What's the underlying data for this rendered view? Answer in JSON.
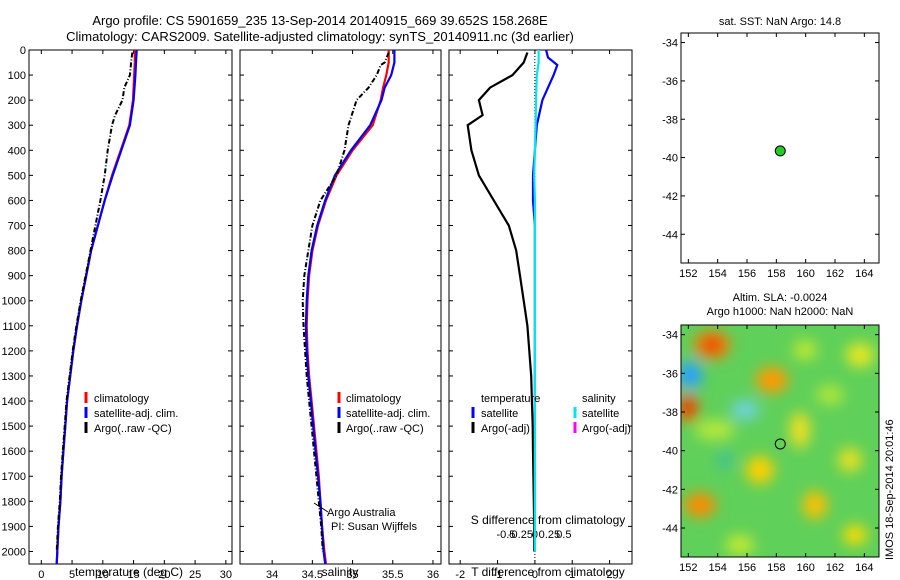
{
  "header": {
    "line1": "Argo profile: CS 5901659_235 13-Sep-2014 20140915_669 39.652S 158.268E",
    "line2": "Climatology: CARS2009. Satellite-adjusted climatology: synTS_20140911.nc (3d earlier)"
  },
  "right_top": {
    "title": "sat. SST: NaN Argo: 14.8"
  },
  "right_bottom": {
    "title1": "Altim. SLA: -0.0024",
    "title2": "Argo h1000: NaN h2000: NaN",
    "side_text": "IMOS 18-Sep-2014 20:01:46"
  },
  "annotation": {
    "line1": "Argo Australia",
    "line2": "PI: Susan Wijffels"
  },
  "legend_profiles": [
    "climatology",
    "satellite-adj. clim.",
    "Argo(..raw -QC)"
  ],
  "legend_diff": {
    "temperature_header": "temperature",
    "salinity_header": "salinity",
    "items": [
      "satellite",
      "Argo(-adj)"
    ]
  },
  "colors": {
    "climatology": "#ff0000",
    "satellite": "#0000ff",
    "argo": "#000000",
    "sal_satellite": "#00e5ee",
    "sal_argo": "#ff00ff",
    "marker": "#22cc22"
  },
  "chart_data": [
    {
      "type": "line",
      "xlabel": "temperature (deg C)",
      "ylabel": "",
      "xlim": [
        -2,
        31
      ],
      "ylim": [
        2050,
        0
      ],
      "xticks": [
        0,
        5,
        10,
        15,
        20,
        25,
        30
      ],
      "yticks": [
        0,
        100,
        200,
        300,
        400,
        500,
        600,
        700,
        800,
        900,
        1000,
        1100,
        1200,
        1300,
        1400,
        1500,
        1600,
        1700,
        1800,
        1900,
        2000
      ],
      "series": [
        {
          "name": "climatology",
          "color": "#ff0000",
          "points": [
            [
              15.2,
              0
            ],
            [
              15.2,
              50
            ],
            [
              15.1,
              100
            ],
            [
              14.9,
              200
            ],
            [
              14.3,
              300
            ],
            [
              12.9,
              400
            ],
            [
              11.5,
              500
            ],
            [
              10.3,
              600
            ],
            [
              9.2,
              700
            ],
            [
              8.1,
              800
            ],
            [
              7.3,
              900
            ],
            [
              6.5,
              1000
            ],
            [
              5.8,
              1100
            ],
            [
              5.2,
              1200
            ],
            [
              4.7,
              1300
            ],
            [
              4.2,
              1400
            ],
            [
              3.9,
              1500
            ],
            [
              3.6,
              1600
            ],
            [
              3.3,
              1700
            ],
            [
              3.1,
              1800
            ],
            [
              2.8,
              1900
            ],
            [
              2.6,
              2000
            ],
            [
              2.5,
              2050
            ]
          ]
        },
        {
          "name": "satellite-adj. clim.",
          "color": "#0000ff",
          "points": [
            [
              15.5,
              0
            ],
            [
              15.4,
              50
            ],
            [
              15.3,
              100
            ],
            [
              15.0,
              200
            ],
            [
              14.4,
              300
            ],
            [
              13.0,
              400
            ],
            [
              11.6,
              500
            ],
            [
              10.3,
              600
            ],
            [
              9.2,
              700
            ],
            [
              8.1,
              800
            ],
            [
              7.3,
              900
            ],
            [
              6.5,
              1000
            ],
            [
              5.8,
              1100
            ],
            [
              5.2,
              1200
            ],
            [
              4.7,
              1300
            ],
            [
              4.2,
              1400
            ],
            [
              3.9,
              1500
            ],
            [
              3.6,
              1600
            ],
            [
              3.3,
              1700
            ],
            [
              3.1,
              1800
            ],
            [
              2.8,
              1900
            ],
            [
              2.6,
              2000
            ],
            [
              2.5,
              2050
            ]
          ]
        },
        {
          "name": "Argo(..raw -QC)",
          "color": "#000000",
          "dashed": true,
          "points": [
            [
              14.8,
              10
            ],
            [
              14.6,
              50
            ],
            [
              14.4,
              100
            ],
            [
              13.5,
              150
            ],
            [
              13.2,
              200
            ],
            [
              12.0,
              260
            ],
            [
              11.5,
              300
            ],
            [
              10.8,
              400
            ],
            [
              10.3,
              500
            ],
            [
              9.6,
              600
            ],
            [
              8.8,
              700
            ],
            [
              8.0,
              800
            ],
            [
              7.2,
              900
            ],
            [
              6.4,
              1000
            ],
            [
              5.7,
              1100
            ],
            [
              5.1,
              1200
            ],
            [
              4.6,
              1300
            ],
            [
              4.1,
              1400
            ],
            [
              3.8,
              1500
            ],
            [
              3.5,
              1600
            ],
            [
              3.2,
              1700
            ],
            [
              3.0,
              1800
            ],
            [
              2.7,
              1900
            ],
            [
              2.5,
              2000
            ]
          ]
        }
      ]
    },
    {
      "type": "line",
      "xlabel": "salinity",
      "ylabel": "",
      "xlim": [
        33.6,
        36.1
      ],
      "ylim": [
        2050,
        0
      ],
      "xticks": [
        34,
        34.5,
        35,
        35.5,
        36
      ],
      "series": [
        {
          "name": "climatology",
          "color": "#ff0000",
          "points": [
            [
              35.45,
              0
            ],
            [
              35.45,
              50
            ],
            [
              35.42,
              100
            ],
            [
              35.38,
              150
            ],
            [
              35.35,
              200
            ],
            [
              35.25,
              300
            ],
            [
              35.0,
              400
            ],
            [
              34.8,
              500
            ],
            [
              34.67,
              600
            ],
            [
              34.57,
              700
            ],
            [
              34.5,
              800
            ],
            [
              34.46,
              900
            ],
            [
              34.44,
              1000
            ],
            [
              34.43,
              1100
            ],
            [
              34.44,
              1200
            ],
            [
              34.46,
              1300
            ],
            [
              34.49,
              1400
            ],
            [
              34.52,
              1500
            ],
            [
              34.55,
              1600
            ],
            [
              34.58,
              1700
            ],
            [
              34.6,
              1800
            ],
            [
              34.62,
              1900
            ],
            [
              34.65,
              2000
            ],
            [
              34.67,
              2050
            ]
          ]
        },
        {
          "name": "satellite-adj. clim.",
          "color": "#0000ff",
          "points": [
            [
              35.52,
              0
            ],
            [
              35.52,
              50
            ],
            [
              35.48,
              100
            ],
            [
              35.4,
              150
            ],
            [
              35.36,
              200
            ],
            [
              35.22,
              300
            ],
            [
              34.98,
              400
            ],
            [
              34.78,
              500
            ],
            [
              34.66,
              600
            ],
            [
              34.56,
              700
            ],
            [
              34.49,
              800
            ],
            [
              34.45,
              900
            ],
            [
              34.43,
              1000
            ],
            [
              34.42,
              1100
            ],
            [
              34.43,
              1200
            ],
            [
              34.45,
              1300
            ],
            [
              34.48,
              1400
            ],
            [
              34.51,
              1500
            ],
            [
              34.54,
              1600
            ],
            [
              34.57,
              1700
            ],
            [
              34.6,
              1800
            ],
            [
              34.62,
              1900
            ],
            [
              34.64,
              2000
            ],
            [
              34.66,
              2050
            ]
          ]
        },
        {
          "name": "Argo(..raw -QC)",
          "color": "#000000",
          "dashed": true,
          "points": [
            [
              35.45,
              10
            ],
            [
              35.4,
              50
            ],
            [
              35.35,
              60
            ],
            [
              35.3,
              100
            ],
            [
              35.2,
              150
            ],
            [
              35.05,
              200
            ],
            [
              34.95,
              300
            ],
            [
              34.9,
              400
            ],
            [
              34.8,
              500
            ],
            [
              34.6,
              600
            ],
            [
              34.5,
              700
            ],
            [
              34.45,
              800
            ],
            [
              34.4,
              900
            ],
            [
              34.38,
              1000
            ],
            [
              34.39,
              1100
            ],
            [
              34.41,
              1200
            ],
            [
              34.43,
              1300
            ],
            [
              34.46,
              1400
            ],
            [
              34.49,
              1500
            ],
            [
              34.52,
              1600
            ],
            [
              34.55,
              1700
            ],
            [
              34.58,
              1800
            ],
            [
              34.61,
              1900
            ],
            [
              34.63,
              2000
            ]
          ]
        }
      ]
    },
    {
      "type": "line",
      "xlabel": "T difference from climatology",
      "xlabel2": "S difference from climatology",
      "ylabel": "",
      "xlim": [
        -2.3,
        2.6
      ],
      "ylim": [
        2050,
        0
      ],
      "xticks": [
        -2,
        -1,
        0,
        1,
        2
      ],
      "x2ticks": [
        -0.5,
        -0.25,
        0,
        0.25,
        0.5
      ],
      "x2tick_labels": [
        "-0.5",
        "-0.25",
        "0",
        "0.25",
        "0.5"
      ],
      "series": [
        {
          "name": "temperature satellite",
          "color": "#0000ff",
          "points": [
            [
              0.3,
              0
            ],
            [
              0.35,
              30
            ],
            [
              0.6,
              60
            ],
            [
              0.5,
              100
            ],
            [
              0.2,
              200
            ],
            [
              0.05,
              300
            ],
            [
              0,
              400
            ],
            [
              -0.05,
              500
            ],
            [
              -0.05,
              600
            ],
            [
              0,
              700
            ],
            [
              0,
              800
            ],
            [
              0,
              900
            ],
            [
              0,
              1000
            ],
            [
              0,
              1100
            ],
            [
              0,
              1200
            ],
            [
              0,
              1300
            ],
            [
              0,
              1400
            ],
            [
              0,
              1500
            ],
            [
              0,
              1600
            ],
            [
              0,
              1700
            ],
            [
              0,
              1800
            ],
            [
              0,
              1900
            ],
            [
              0,
              2000
            ]
          ]
        },
        {
          "name": "temperature Argo(-adj)",
          "color": "#000000",
          "points": [
            [
              -0.2,
              10
            ],
            [
              -0.3,
              50
            ],
            [
              -0.6,
              100
            ],
            [
              -1.2,
              150
            ],
            [
              -1.5,
              200
            ],
            [
              -1.4,
              260
            ],
            [
              -1.8,
              300
            ],
            [
              -1.7,
              400
            ],
            [
              -1.5,
              500
            ],
            [
              -1.1,
              600
            ],
            [
              -0.7,
              700
            ],
            [
              -0.5,
              800
            ],
            [
              -0.4,
              900
            ],
            [
              -0.3,
              1000
            ],
            [
              -0.2,
              1100
            ],
            [
              -0.15,
              1200
            ],
            [
              -0.1,
              1300
            ],
            [
              -0.08,
              1400
            ],
            [
              -0.06,
              1500
            ],
            [
              -0.05,
              1600
            ],
            [
              -0.04,
              1700
            ],
            [
              -0.03,
              1800
            ],
            [
              -0.02,
              1900
            ],
            [
              -0.02,
              2000
            ]
          ]
        },
        {
          "name": "salinity satellite",
          "color": "#00e5ee",
          "points": [
            [
              0.1,
              0
            ],
            [
              0.1,
              50
            ],
            [
              0.05,
              100
            ],
            [
              0.03,
              200
            ],
            [
              0.02,
              300
            ],
            [
              0,
              400
            ],
            [
              -0.02,
              500
            ],
            [
              0,
              600
            ],
            [
              0,
              700
            ],
            [
              0,
              800
            ],
            [
              0,
              900
            ],
            [
              0,
              1000
            ],
            [
              0,
              1100
            ],
            [
              0,
              1200
            ],
            [
              0,
              1300
            ],
            [
              0,
              1400
            ],
            [
              0,
              1500
            ],
            [
              0,
              1600
            ],
            [
              0,
              1700
            ],
            [
              0,
              1800
            ],
            [
              0,
              1900
            ],
            [
              0,
              2000
            ]
          ]
        }
      ]
    },
    {
      "type": "scatter",
      "xlim": [
        151.5,
        165
      ],
      "ylim": [
        -45.5,
        -33.5
      ],
      "xticks": [
        152,
        154,
        156,
        158,
        160,
        162,
        164
      ],
      "yticks": [
        -34,
        -36,
        -38,
        -40,
        -42,
        -44
      ],
      "points": [
        [
          158.268,
          -39.652
        ]
      ]
    },
    {
      "type": "heatmap",
      "xlim": [
        151.5,
        165
      ],
      "ylim": [
        -45.5,
        -33.5
      ],
      "xticks": [
        152,
        154,
        156,
        158,
        160,
        162,
        164
      ],
      "yticks": [
        -34,
        -36,
        -38,
        -40,
        -42,
        -44
      ],
      "points": [
        [
          158.268,
          -39.652
        ]
      ]
    }
  ]
}
